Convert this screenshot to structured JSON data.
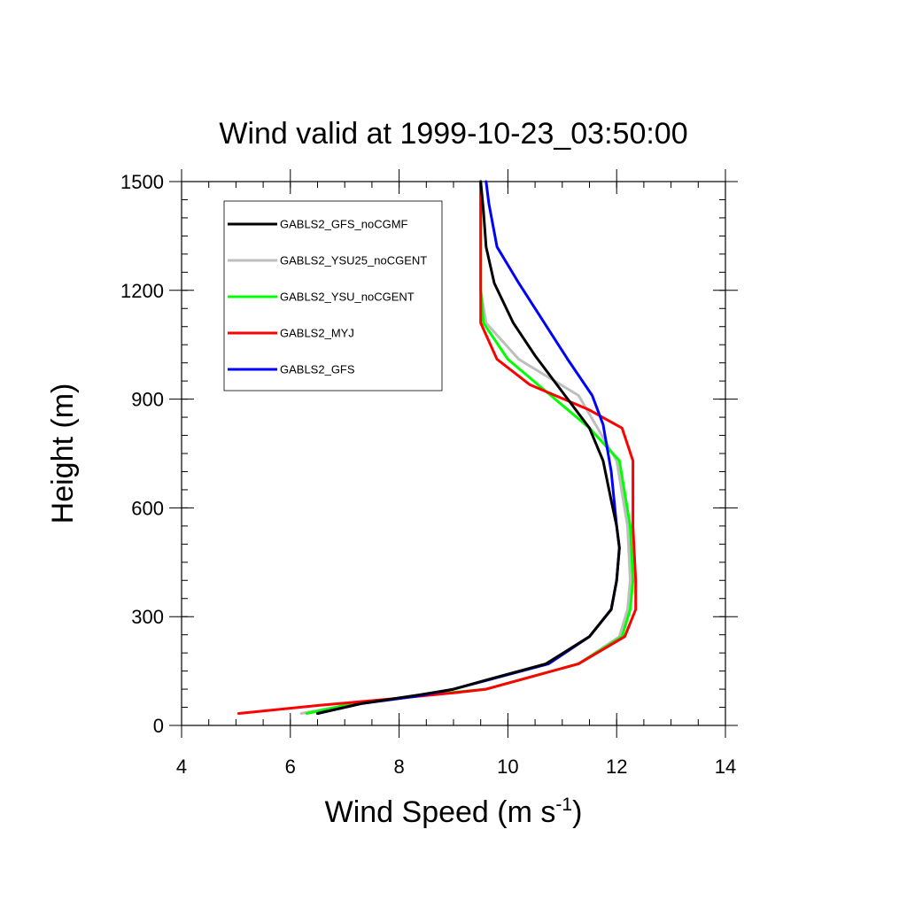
{
  "chart_data": {
    "type": "line",
    "title": "Wind valid at 1999-10-23_03:50:00",
    "xlabel": "Wind Speed (m s",
    "xlabel_sup": "-1",
    "xlabel_close": ")",
    "ylabel": "Height (m)",
    "xlim": [
      4,
      14
    ],
    "ylim": [
      0,
      1500
    ],
    "xticks": [
      4,
      6,
      8,
      10,
      12,
      14
    ],
    "yticks": [
      0,
      300,
      600,
      900,
      1200,
      1500
    ],
    "grid": false,
    "legend_position": "top-left",
    "series": [
      {
        "name": "GABLS2_GFS_noCGMF",
        "color": "#000000",
        "x": [
          6.5,
          7.3,
          8.4,
          9.0,
          9.6,
          10.7,
          11.5,
          11.9,
          12.0,
          12.05,
          12.0,
          11.9,
          11.75,
          11.5,
          11.0,
          10.5,
          10.1,
          9.75,
          9.6,
          9.55,
          9.5
        ],
        "y": [
          33,
          60,
          85,
          100,
          125,
          170,
          245,
          320,
          400,
          490,
          550,
          620,
          730,
          820,
          920,
          1020,
          1110,
          1220,
          1320,
          1420,
          1500
        ]
      },
      {
        "name": "GABLS2_YSU25_noCGENT",
        "color": "#bebebe",
        "x": [
          6.2,
          7.0,
          8.2,
          9.6,
          11.3,
          12.05,
          12.2,
          12.25,
          12.2,
          12.0,
          11.3,
          10.2,
          9.6,
          9.5,
          9.5,
          9.5
        ],
        "y": [
          33,
          55,
          80,
          100,
          170,
          245,
          320,
          400,
          550,
          730,
          910,
          1010,
          1110,
          1200,
          1350,
          1500
        ]
      },
      {
        "name": "GABLS2_YSU_noCGENT",
        "color": "#00ff00",
        "x": [
          6.3,
          7.0,
          8.2,
          9.6,
          11.3,
          12.1,
          12.25,
          12.3,
          12.25,
          12.05,
          11.5,
          10.0,
          9.55,
          9.5,
          9.5,
          9.5
        ],
        "y": [
          33,
          55,
          80,
          100,
          170,
          245,
          320,
          400,
          550,
          730,
          820,
          1010,
          1110,
          1200,
          1350,
          1500
        ]
      },
      {
        "name": "GABLS2_MYJ",
        "color": "#ff0000",
        "x": [
          5.05,
          6.5,
          8.0,
          9.0,
          9.6,
          11.3,
          12.15,
          12.35,
          12.35,
          12.3,
          12.3,
          12.1,
          11.5,
          10.4,
          9.8,
          9.5,
          9.5,
          9.5
        ],
        "y": [
          33,
          55,
          75,
          90,
          100,
          170,
          245,
          320,
          400,
          550,
          730,
          820,
          870,
          940,
          1010,
          1110,
          1200,
          1500
        ]
      },
      {
        "name": "GABLS2_GFS",
        "color": "#0000ff",
        "x": [
          6.5,
          7.3,
          8.3,
          9.0,
          9.5,
          10.75,
          11.5,
          11.9,
          12.0,
          12.05,
          12.0,
          11.9,
          11.75,
          11.55,
          11.1,
          10.2,
          9.8,
          9.65,
          9.6
        ],
        "y": [
          33,
          60,
          80,
          100,
          120,
          170,
          245,
          320,
          400,
          490,
          550,
          700,
          830,
          910,
          1010,
          1220,
          1320,
          1440,
          1500
        ]
      }
    ]
  }
}
